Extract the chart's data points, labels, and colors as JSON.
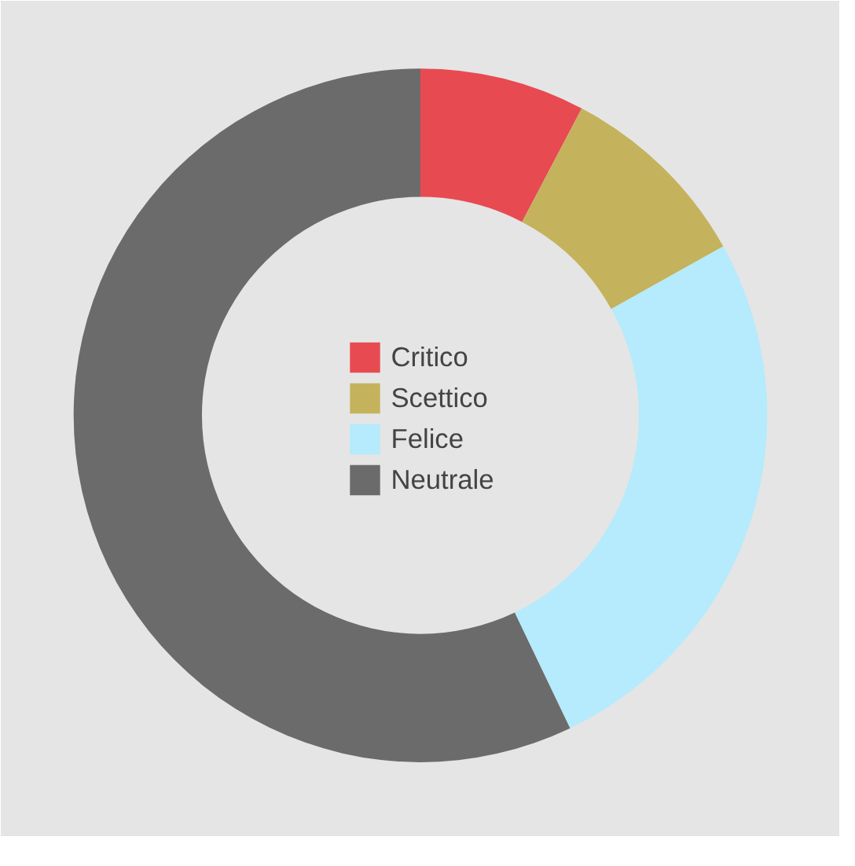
{
  "chart_data": {
    "type": "donut",
    "categories": [
      "Critico",
      "Scettico",
      "Felice",
      "Neutrale"
    ],
    "values": [
      7.7,
      9.2,
      26.0,
      57.1
    ],
    "colors": [
      "#e84a52",
      "#c4b35c",
      "#b5ebfc",
      "#6b6b6b"
    ],
    "legend": "center"
  }
}
